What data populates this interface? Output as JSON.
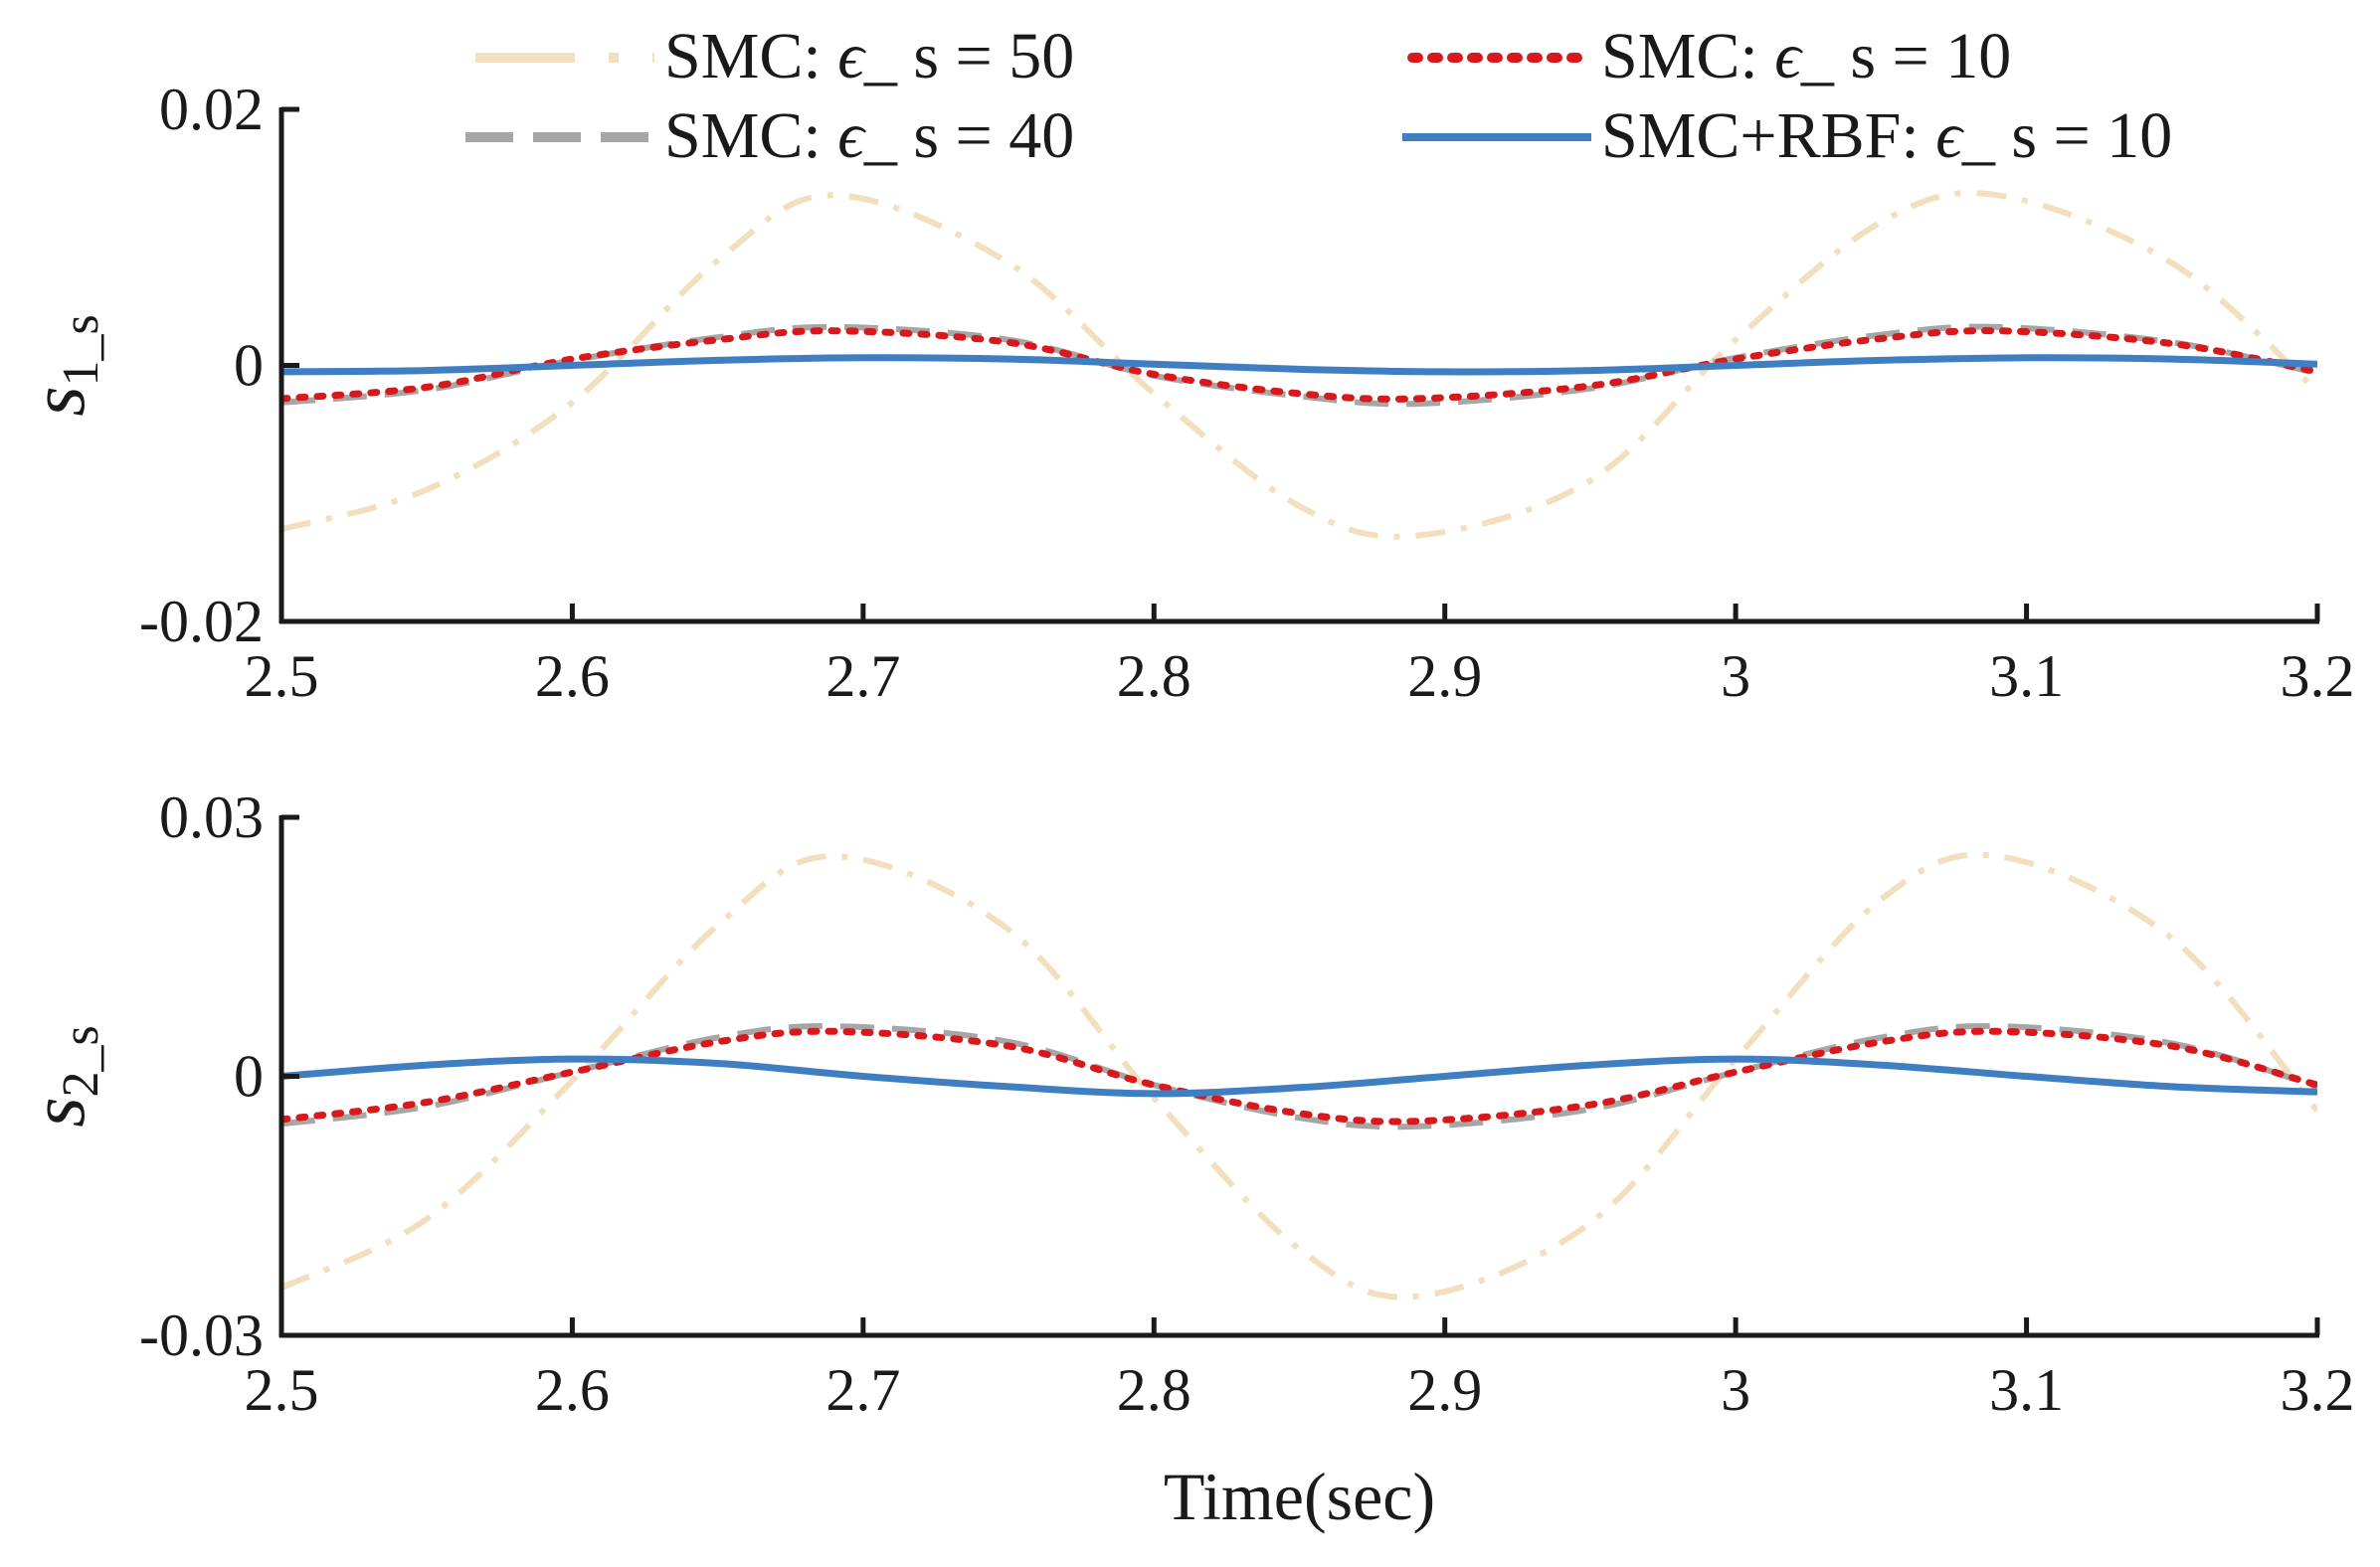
{
  "chart_data": [
    {
      "type": "line",
      "ylabel": "s1_s",
      "ylabel_main": "s",
      "ylabel_sub": "1_s",
      "xlabel": "",
      "xlim": [
        2.5,
        3.2
      ],
      "ylim": [
        -0.02,
        0.02
      ],
      "xticks": [
        2.5,
        2.6,
        2.7,
        2.8,
        2.9,
        3.0,
        3.1,
        3.2
      ],
      "xtick_labels": [
        "2.5",
        "2.6",
        "2.7",
        "2.8",
        "2.9",
        "3",
        "3.1",
        "3.2"
      ],
      "yticks": [
        -0.02,
        0,
        0.02
      ],
      "ytick_labels": [
        "-0.02",
        "0",
        "0.02"
      ],
      "legend": {
        "placement": "top",
        "entries": [
          {
            "label_prefix": "SMC: ",
            "symbol": "ϵ",
            "label_suffix": "_ s = 50",
            "series": 0
          },
          {
            "label_prefix": "SMC: ",
            "symbol": "ϵ",
            "label_suffix": "_ s = 10",
            "series": 2
          },
          {
            "label_prefix": "SMC: ",
            "symbol": "ϵ",
            "label_suffix": "_ s = 40",
            "series": 1
          },
          {
            "label_prefix": "SMC+RBF: ",
            "symbol": "ϵ",
            "label_suffix": "_ s = 10",
            "series": 3
          }
        ]
      },
      "series": [
        {
          "name": "SMC: ϵ_ s = 50",
          "color": "#f2dfbd",
          "style": "dashdot",
          "x": [
            2.5,
            2.55,
            2.6,
            2.65,
            2.69,
            2.75,
            2.8,
            2.85,
            2.89,
            2.95,
            3.0,
            3.05,
            3.09,
            3.15,
            3.2
          ],
          "y": [
            -0.0128,
            -0.0097,
            -0.0029,
            0.0082,
            0.0133,
            0.008,
            -0.0022,
            -0.011,
            -0.0133,
            -0.009,
            0.002,
            0.0112,
            0.0133,
            0.008,
            -0.002
          ]
        },
        {
          "name": "SMC: ϵ_ s = 40",
          "color": "#a6a6a6",
          "style": "dashed",
          "x": [
            2.5,
            2.55,
            2.6,
            2.65,
            2.69,
            2.75,
            2.8,
            2.85,
            2.89,
            2.95,
            3.0,
            3.05,
            3.09,
            3.15,
            3.2
          ],
          "y": [
            -0.0029,
            -0.0019,
            0.0004,
            0.0022,
            0.003,
            0.002,
            -0.0008,
            -0.0024,
            -0.003,
            -0.0018,
            0.0006,
            0.0024,
            0.003,
            0.0018,
            -0.0006
          ]
        },
        {
          "name": "SMC: ϵ_ s = 10",
          "color": "#d7191c",
          "style": "dotted",
          "x": [
            2.5,
            2.55,
            2.6,
            2.65,
            2.69,
            2.75,
            2.8,
            2.85,
            2.89,
            2.95,
            3.0,
            3.05,
            3.09,
            3.15,
            3.2
          ],
          "y": [
            -0.0026,
            -0.0017,
            0.0005,
            0.002,
            0.0027,
            0.0018,
            -0.0007,
            -0.0022,
            -0.0026,
            -0.0016,
            0.0005,
            0.0021,
            0.0027,
            0.0017,
            -0.0005
          ]
        },
        {
          "name": "SMC+RBF: ϵ_ s = 10",
          "color": "#3f7fc1",
          "style": "solid",
          "x": [
            2.5,
            2.55,
            2.6,
            2.65,
            2.7,
            2.75,
            2.8,
            2.85,
            2.9,
            2.95,
            3.0,
            3.05,
            3.1,
            3.15,
            3.2
          ],
          "y": [
            -0.0005,
            -0.0004,
            0.0,
            0.0004,
            0.0006,
            0.0005,
            0.0001,
            -0.0003,
            -0.0005,
            -0.0004,
            0.0,
            0.0004,
            0.0006,
            0.0005,
            0.0001
          ]
        }
      ]
    },
    {
      "type": "line",
      "ylabel": "s2_s",
      "ylabel_main": "s",
      "ylabel_sub": "2_s",
      "xlabel": "Time(sec)",
      "xlim": [
        2.5,
        3.2
      ],
      "ylim": [
        -0.03,
        0.03
      ],
      "xticks": [
        2.5,
        2.6,
        2.7,
        2.8,
        2.9,
        3.0,
        3.1,
        3.2
      ],
      "xtick_labels": [
        "2.5",
        "2.6",
        "2.7",
        "2.8",
        "2.9",
        "3",
        "3.1",
        "3.2"
      ],
      "yticks": [
        -0.03,
        0,
        0.03
      ],
      "ytick_labels": [
        "-0.03",
        "0",
        "0.03"
      ],
      "series": [
        {
          "name": "SMC: ϵ_ s = 50",
          "color": "#f2dfbd",
          "style": "dashdot",
          "x": [
            2.5,
            2.55,
            2.6,
            2.65,
            2.69,
            2.75,
            2.8,
            2.85,
            2.89,
            2.95,
            3.0,
            3.05,
            3.09,
            3.15,
            3.2
          ],
          "y": [
            -0.0245,
            -0.0165,
            -0.0005,
            0.0175,
            0.0255,
            0.017,
            -0.0025,
            -0.02,
            -0.0255,
            -0.017,
            0.002,
            0.0205,
            0.0255,
            0.016,
            -0.004
          ]
        },
        {
          "name": "SMC: ϵ_ s = 40",
          "color": "#a6a6a6",
          "style": "dashed",
          "x": [
            2.5,
            2.55,
            2.6,
            2.65,
            2.69,
            2.75,
            2.8,
            2.85,
            2.89,
            2.95,
            3.0,
            3.05,
            3.09,
            3.15,
            3.2
          ],
          "y": [
            -0.0055,
            -0.0035,
            0.0005,
            0.0045,
            0.0058,
            0.004,
            -0.001,
            -0.0048,
            -0.0058,
            -0.0038,
            0.0005,
            0.0045,
            0.0058,
            0.0038,
            -0.0012
          ]
        },
        {
          "name": "SMC: ϵ_ s = 10",
          "color": "#d7191c",
          "style": "dotted",
          "x": [
            2.5,
            2.55,
            2.6,
            2.65,
            2.69,
            2.75,
            2.8,
            2.85,
            2.89,
            2.95,
            3.0,
            3.05,
            3.09,
            3.15,
            3.2
          ],
          "y": [
            -0.005,
            -0.003,
            0.0005,
            0.004,
            0.0052,
            0.0035,
            -0.001,
            -0.0043,
            -0.0052,
            -0.0033,
            0.0005,
            0.004,
            0.0052,
            0.0035,
            -0.001
          ]
        },
        {
          "name": "SMC+RBF: ϵ_ s = 10",
          "color": "#3f7fc1",
          "style": "solid",
          "x": [
            2.5,
            2.55,
            2.6,
            2.65,
            2.7,
            2.75,
            2.8,
            2.85,
            2.9,
            2.95,
            3.0,
            3.05,
            3.1,
            3.15,
            3.2
          ],
          "y": [
            0.0,
            0.0013,
            0.002,
            0.0015,
            0.0,
            -0.0012,
            -0.002,
            -0.0013,
            0.0,
            0.0013,
            0.002,
            0.0013,
            0.0,
            -0.0012,
            -0.0018
          ]
        }
      ]
    }
  ]
}
